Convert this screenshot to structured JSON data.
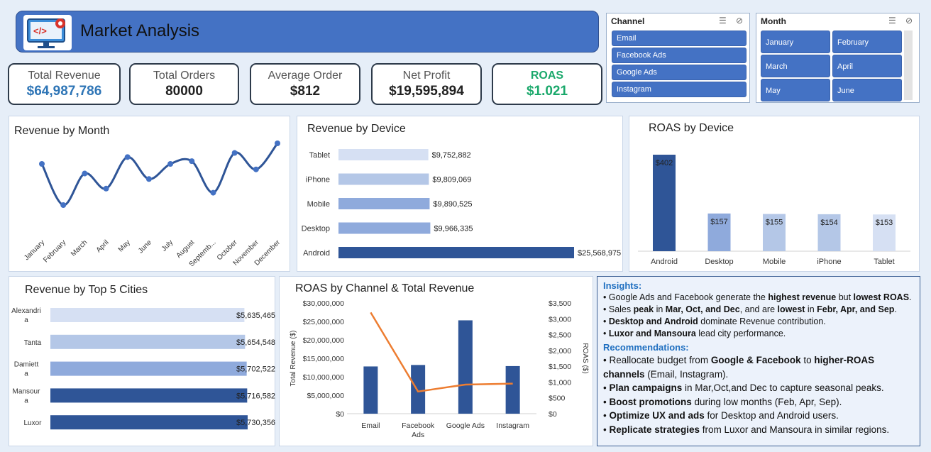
{
  "header": {
    "title": "Market Analysis"
  },
  "kpis": [
    {
      "label": "Total Revenue",
      "value": "$64,987,786",
      "color": "#2e75b6",
      "label_color": "#555555"
    },
    {
      "label": "Total Orders",
      "value": "80000",
      "color": "#222222",
      "label_color": "#555555"
    },
    {
      "label": "Average Order",
      "value": "$812",
      "color": "#222222",
      "label_color": "#555555"
    },
    {
      "label": "Net Profit",
      "value": "$19,595,894",
      "color": "#222222",
      "label_color": "#555555"
    },
    {
      "label": "ROAS",
      "value": "$1.021",
      "color": "#1aa86b",
      "label_color": "#1aa86b"
    }
  ],
  "slicers": {
    "channel": {
      "title": "Channel",
      "items": [
        "Email",
        "Facebook Ads",
        "Google Ads",
        "Instagram"
      ]
    },
    "month": {
      "title": "Month",
      "items": [
        "January",
        "February",
        "March",
        "April",
        "May",
        "June"
      ]
    }
  },
  "colors": {
    "dark": "#2f5597",
    "mid": "#8faadc",
    "light": "#b4c7e7",
    "lighter": "#d6e0f3",
    "line": "#2f5597",
    "orange": "#ed7d31"
  },
  "chart_data": [
    {
      "id": "revenue_by_month",
      "type": "line",
      "title": "Revenue by Month",
      "categories": [
        "January",
        "February",
        "March",
        "April",
        "May",
        "June",
        "July",
        "August",
        "Septemb...",
        "October",
        "November",
        "December"
      ],
      "values": [
        5.45,
        5.15,
        5.38,
        5.27,
        5.5,
        5.34,
        5.45,
        5.47,
        5.24,
        5.53,
        5.41,
        5.6
      ]
    },
    {
      "id": "revenue_by_device",
      "type": "bar",
      "title": "Revenue by Device",
      "categories": [
        "Tablet",
        "iPhone",
        "Mobile",
        "Desktop",
        "Android"
      ],
      "values": [
        9752882,
        9809069,
        9890525,
        9966335,
        25568975
      ],
      "labels": [
        "$9,752,882",
        "$9,809,069",
        "$9,890,525",
        "$9,966,335",
        "$25,568,975"
      ]
    },
    {
      "id": "roas_by_device",
      "type": "bar",
      "title": "ROAS by Device",
      "categories": [
        "Android",
        "Desktop",
        "Mobile",
        "iPhone",
        "Tablet"
      ],
      "values": [
        402,
        157,
        155,
        154,
        153
      ],
      "labels": [
        "$402",
        "$157",
        "$155",
        "$154",
        "$153"
      ]
    },
    {
      "id": "revenue_by_top5_cities",
      "type": "bar",
      "title": "Revenue by Top 5 Cities",
      "categories": [
        "Alexandria",
        "Tanta",
        "Damietta",
        "Mansoura",
        "Luxor"
      ],
      "values": [
        5635465,
        5654548,
        5702522,
        5716582,
        5730356
      ],
      "labels": [
        "$5,635,465",
        "$5,654,548",
        "$5,702,522",
        "$5,716,582",
        "$5,730,356"
      ]
    },
    {
      "id": "roas_by_channel_total_revenue",
      "type": "bar",
      "title": "ROAS by Channel & Total Revenue",
      "categories": [
        "Email",
        "Facebook Ads",
        "Google Ads",
        "Instagram"
      ],
      "series": [
        {
          "values": [
            12800000,
            13200000,
            25300000,
            12900000
          ],
          "axis": "left"
        },
        {
          "values": [
            3200,
            700,
            920,
            950
          ],
          "axis": "right",
          "type": "line"
        }
      ],
      "ylabel": "Total Revenue ($)",
      "y2label": "ROAS ($)",
      "ylim": [
        0,
        30000000
      ],
      "y2lim": [
        0,
        3500
      ],
      "yticks": [
        "$0",
        "$5,000,000",
        "$10,000,000",
        "$15,000,000",
        "$20,000,000",
        "$25,000,000",
        "$30,000,000"
      ],
      "y2ticks": [
        "$0",
        "$500",
        "$1,000",
        "$1,500",
        "$2,000",
        "$2,500",
        "$3,000",
        "$3,500"
      ]
    }
  ],
  "insights": {
    "heading": "Insights:",
    "items": [
      [
        {
          "t": "Google Ads and Facebook generate the "
        },
        {
          "t": "highest revenue",
          "b": true
        },
        {
          "t": " but "
        },
        {
          "t": "lowest ROAS",
          "b": true
        },
        {
          "t": "."
        }
      ],
      [
        {
          "t": "Sales "
        },
        {
          "t": "peak",
          "b": true
        },
        {
          "t": " in "
        },
        {
          "t": "Mar, Oct, and Dec",
          "b": true
        },
        {
          "t": ", and are "
        },
        {
          "t": "lowest",
          "b": true
        },
        {
          "t": " in "
        },
        {
          "t": "Febr, Apr, and Sep",
          "b": true
        },
        {
          "t": "."
        }
      ],
      [
        {
          "t": "Desktop and Android",
          "b": true
        },
        {
          "t": " dominate Revenue contribution."
        }
      ],
      [
        {
          "t": "Luxor and Mansoura",
          "b": true
        },
        {
          "t": " lead city performance."
        }
      ]
    ],
    "rec_heading": "Recommendations:",
    "recs": [
      [
        {
          "t": "Reallocate budget from "
        },
        {
          "t": "Google & Facebook",
          "b": true
        },
        {
          "t": " to "
        },
        {
          "t": "higher-ROAS channels",
          "b": true
        },
        {
          "t": " (Email, Instagram)."
        }
      ],
      [
        {
          "t": "Plan campaigns",
          "b": true
        },
        {
          "t": " in Mar,Oct,and Dec to capture seasonal peaks."
        }
      ],
      [
        {
          "t": "Boost promotions",
          "b": true
        },
        {
          "t": " during low months (Feb, Apr, Sep)."
        }
      ],
      [
        {
          "t": "Optimize UX and ads",
          "b": true
        },
        {
          "t": " for Desktop and Android users."
        }
      ],
      [
        {
          "t": "Replicate strategies",
          "b": true
        },
        {
          "t": " from Luxor and Mansoura in similar regions."
        }
      ]
    ]
  }
}
